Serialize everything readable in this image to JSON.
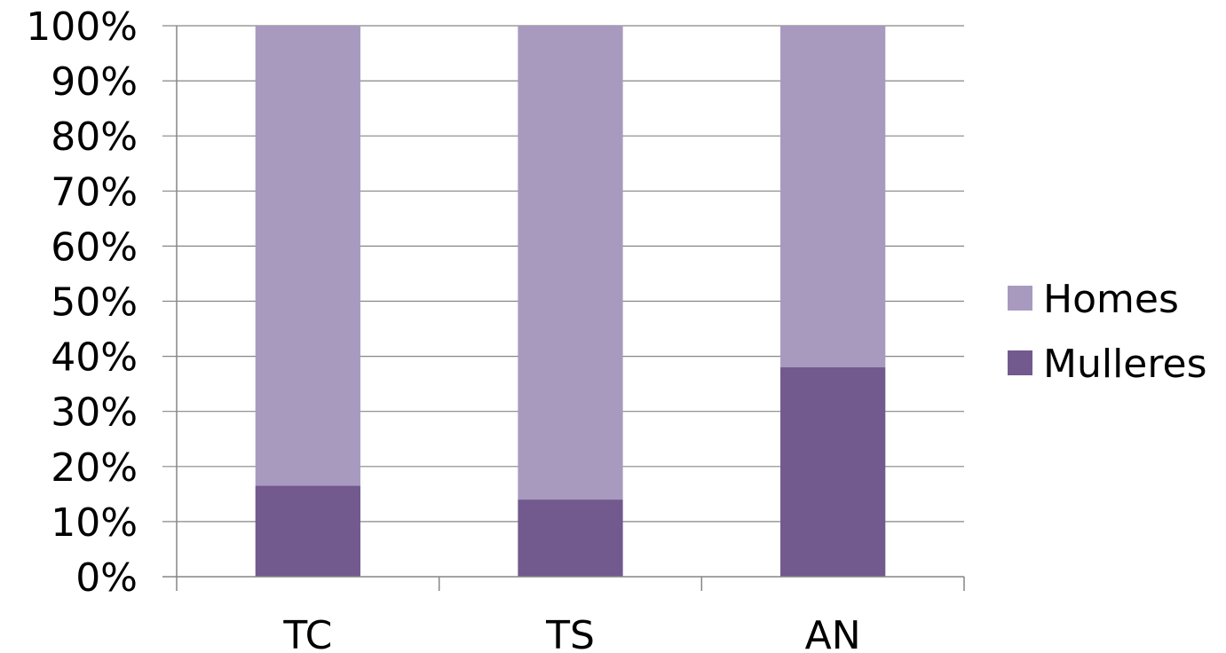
{
  "chart_data": {
    "type": "bar",
    "stacked": true,
    "percent": true,
    "categories": [
      "TC",
      "TS",
      "AN"
    ],
    "series": [
      {
        "name": "Mulleres",
        "values": [
          16.5,
          14,
          38
        ],
        "color": "#72598e"
      },
      {
        "name": "Homes",
        "values": [
          83.5,
          86,
          62
        ],
        "color": "#a89abf"
      }
    ],
    "yticks": [
      "0%",
      "10%",
      "20%",
      "30%",
      "40%",
      "50%",
      "60%",
      "70%",
      "80%",
      "90%",
      "100%"
    ],
    "ylim": [
      0,
      100
    ],
    "grid": true,
    "legend": {
      "position": "right",
      "order": [
        "Homes",
        "Mulleres"
      ]
    },
    "title": "",
    "xlabel": "",
    "ylabel": ""
  }
}
